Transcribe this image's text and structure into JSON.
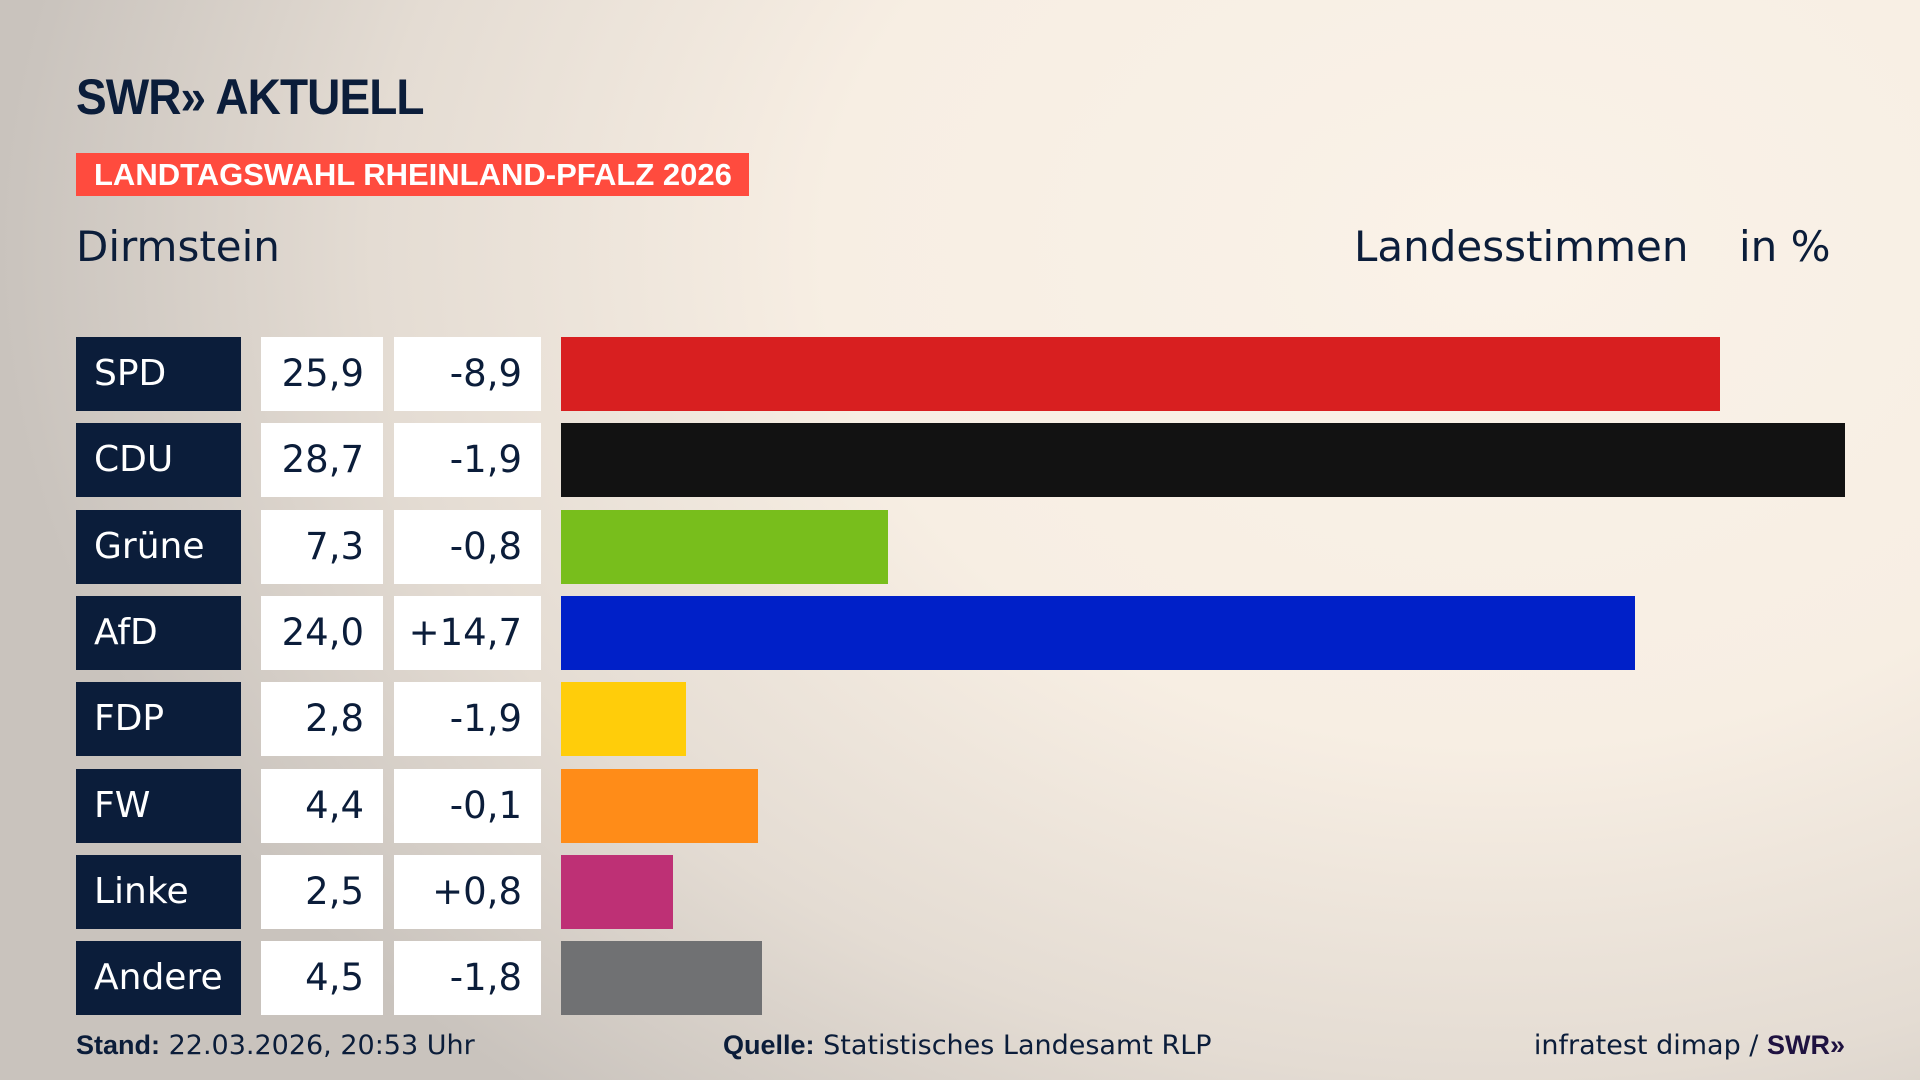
{
  "header": {
    "logo_text": "SWR» AKTUELL",
    "banner": "LANDTAGSWAHL RHEINLAND-PFALZ 2026",
    "place": "Dirmstein",
    "metric": "Landesstimmen",
    "unit": "in %"
  },
  "chart_data": {
    "type": "bar",
    "orientation": "horizontal",
    "categories": [
      "SPD",
      "CDU",
      "Grüne",
      "AfD",
      "FDP",
      "FW",
      "Linke",
      "Andere"
    ],
    "values": [
      25.9,
      28.7,
      7.3,
      24.0,
      2.8,
      4.4,
      2.5,
      4.5
    ],
    "value_labels": [
      "25,9",
      "28,7",
      "7,3",
      "24,0",
      "2,8",
      "4,4",
      "2,5",
      "4,5"
    ],
    "changes": [
      -8.9,
      -1.9,
      -0.8,
      14.7,
      -1.9,
      -0.1,
      0.8,
      -1.8
    ],
    "change_labels": [
      "-8,9",
      "-1,9",
      "-0,8",
      "+14,7",
      "-1,9",
      "-0,1",
      "+0,8",
      "-1,8"
    ],
    "colors": [
      "#d81f20",
      "#121212",
      "#78be1c",
      "#0020c8",
      "#ffcd0a",
      "#ff8c18",
      "#be3075",
      "#707173"
    ],
    "xlim": [
      0,
      28.7
    ],
    "grid": false
  },
  "footer": {
    "stand_label": "Stand:",
    "stand_value": " 22.03.2026, 20:53 Uhr",
    "source_label": "Quelle:",
    "source_value": " Statistisches Landesamt RLP",
    "credit": "infratest dimap / ",
    "credit_logo": "SWR»"
  }
}
